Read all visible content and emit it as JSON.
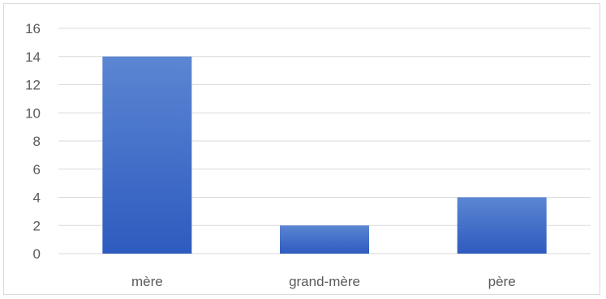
{
  "chart_data": {
    "type": "bar",
    "categories": [
      "mère",
      "grand-mère",
      "père"
    ],
    "series": [
      {
        "values": [
          14,
          2,
          4
        ]
      }
    ],
    "ylim": [
      0,
      16
    ],
    "yticks": [
      0,
      2,
      4,
      6,
      8,
      10,
      12,
      14,
      16
    ],
    "grid": true,
    "title": "",
    "xlabel": "",
    "ylabel": "",
    "colors": {
      "bar_top": "#5b86d3",
      "bar_bottom": "#2e5bbf",
      "grid": "#d9d9d9",
      "text": "#595959"
    }
  }
}
